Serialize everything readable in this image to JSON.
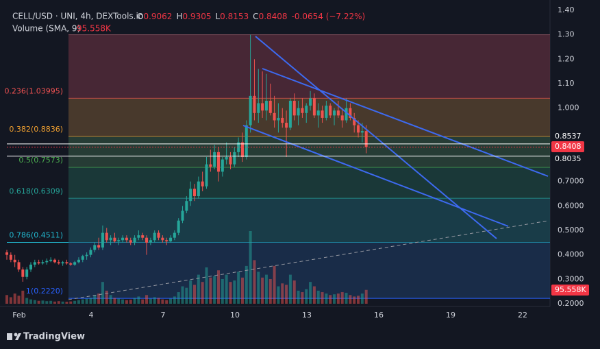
{
  "chart_data": {
    "type": "candlestick",
    "title": "CELL/USD · UNI, 4h, DEXTools.io",
    "ohlc_header": [
      {
        "key": "O",
        "value": 0.9062
      },
      {
        "key": "H",
        "value": 0.9305
      },
      {
        "key": "L",
        "value": 0.8153
      },
      {
        "key": "C",
        "value": 0.8408
      }
    ],
    "change": "-0.0654 (−7.22%)",
    "volume_title": "Volume (SMA, 9)",
    "volume_value": "95.558K",
    "ylim": [
      0.2,
      1.4
    ],
    "yticks": [
      {
        "value": 1.4,
        "label": "1.40"
      },
      {
        "value": 1.3,
        "label": "1.30"
      },
      {
        "value": 1.2,
        "label": "1.20"
      },
      {
        "value": 1.1,
        "label": "1.10"
      },
      {
        "value": 1.0,
        "label": "1.000"
      },
      {
        "value": 0.7,
        "label": "0.7000"
      },
      {
        "value": 0.6,
        "label": "0.6000"
      },
      {
        "value": 0.5,
        "label": "0.5000"
      },
      {
        "value": 0.4,
        "label": "0.4000"
      },
      {
        "value": 0.3,
        "label": "0.3000"
      },
      {
        "value": 0.2,
        "label": "0.2000"
      }
    ],
    "xticks": [
      {
        "value": 1,
        "label": "Feb"
      },
      4,
      7,
      10,
      13,
      16,
      19,
      22
    ],
    "top_level": 1.3,
    "fib_levels": [
      {
        "label": "0.236(1.03995)",
        "price": 1.03995,
        "color": "#f05252"
      },
      {
        "label": "0.382(0.8836)",
        "price": 0.8836,
        "color": "#f0a030"
      },
      {
        "label": "0.5(0.7573)",
        "price": 0.7573,
        "color": "#4caf50"
      },
      {
        "label": "0.618(0.6309)",
        "price": 0.6309,
        "color": "#26a69a"
      },
      {
        "label": "0.786(0.4511)",
        "price": 0.4511,
        "color": "#22b8cf"
      },
      {
        "label": "1(0.2220)",
        "price": 0.222,
        "color": "#2962ff"
      }
    ],
    "price_labels": [
      {
        "value": 0.8537,
        "color": "#ffffff"
      },
      {
        "value": 0.8408,
        "color": "#f23645"
      },
      {
        "value": 0.8035,
        "color": "#ffffff"
      }
    ],
    "up_color": "#26a69a",
    "down_color": "#ef5350",
    "open": [
      0.41,
      0.4,
      0.38,
      0.37,
      0.34,
      0.31,
      0.34,
      0.36,
      0.37,
      0.365,
      0.37,
      0.375,
      0.38,
      0.37,
      0.365,
      0.37,
      0.365,
      0.36,
      0.37,
      0.38,
      0.395,
      0.4,
      0.42,
      0.44,
      0.43,
      0.49,
      0.46,
      0.47,
      0.455,
      0.46,
      0.47,
      0.46,
      0.45,
      0.47,
      0.48,
      0.47,
      0.45,
      0.46,
      0.49,
      0.47,
      0.46,
      0.455,
      0.47,
      0.49,
      0.54,
      0.58,
      0.62,
      0.67,
      0.64,
      0.7,
      0.68,
      0.77,
      0.76,
      0.82,
      0.74,
      0.79,
      0.8,
      0.77,
      0.82,
      0.86,
      0.8,
      0.93,
      1.05,
      0.98,
      1.02,
      0.99,
      1.03,
      0.98,
      0.95,
      0.96,
      0.94,
      0.92,
      1.03,
      0.97,
      1.0,
      0.98,
      1.01,
      1.04,
      0.97,
      0.99,
      0.96,
      1.01,
      0.97,
      0.99,
      0.97,
      0.95,
      1.0,
      0.96,
      0.93,
      0.9,
      0.9062
    ],
    "high": [
      0.42,
      0.41,
      0.4,
      0.38,
      0.35,
      0.35,
      0.37,
      0.38,
      0.38,
      0.38,
      0.385,
      0.39,
      0.385,
      0.38,
      0.375,
      0.38,
      0.37,
      0.375,
      0.39,
      0.4,
      0.41,
      0.43,
      0.45,
      0.47,
      0.52,
      0.51,
      0.48,
      0.49,
      0.47,
      0.48,
      0.48,
      0.47,
      0.48,
      0.5,
      0.49,
      0.48,
      0.47,
      0.5,
      0.5,
      0.48,
      0.47,
      0.48,
      0.5,
      0.55,
      0.6,
      0.64,
      0.7,
      0.69,
      0.72,
      0.74,
      0.8,
      0.83,
      0.85,
      0.84,
      0.8,
      0.86,
      0.82,
      0.84,
      0.88,
      0.9,
      0.95,
      1.3,
      1.2,
      1.16,
      1.15,
      1.14,
      1.1,
      1.05,
      1.02,
      1.0,
      0.99,
      1.04,
      1.06,
      1.03,
      1.04,
      1.02,
      1.07,
      1.06,
      1.02,
      1.01,
      1.03,
      1.02,
      1.0,
      1.03,
      1.0,
      1.04,
      1.02,
      0.98,
      0.95,
      0.94,
      0.9305
    ],
    "low": [
      0.38,
      0.37,
      0.35,
      0.33,
      0.29,
      0.3,
      0.33,
      0.35,
      0.36,
      0.36,
      0.36,
      0.37,
      0.365,
      0.36,
      0.355,
      0.36,
      0.355,
      0.355,
      0.365,
      0.37,
      0.38,
      0.39,
      0.41,
      0.42,
      0.42,
      0.45,
      0.44,
      0.45,
      0.44,
      0.45,
      0.45,
      0.44,
      0.44,
      0.46,
      0.46,
      0.4,
      0.44,
      0.45,
      0.46,
      0.45,
      0.44,
      0.45,
      0.46,
      0.48,
      0.53,
      0.57,
      0.6,
      0.62,
      0.63,
      0.66,
      0.67,
      0.74,
      0.75,
      0.7,
      0.72,
      0.77,
      0.75,
      0.76,
      0.8,
      0.78,
      0.79,
      0.9,
      0.95,
      0.94,
      0.96,
      0.95,
      0.97,
      0.92,
      0.9,
      0.92,
      0.8,
      0.91,
      0.95,
      0.93,
      0.96,
      0.94,
      0.99,
      0.96,
      0.92,
      0.94,
      0.95,
      0.96,
      0.93,
      0.96,
      0.92,
      0.94,
      0.95,
      0.9,
      0.88,
      0.86,
      0.8153
    ],
    "close": [
      0.4,
      0.38,
      0.37,
      0.34,
      0.31,
      0.34,
      0.36,
      0.37,
      0.365,
      0.37,
      0.375,
      0.38,
      0.37,
      0.365,
      0.37,
      0.365,
      0.36,
      0.37,
      0.38,
      0.395,
      0.4,
      0.42,
      0.44,
      0.43,
      0.49,
      0.46,
      0.47,
      0.455,
      0.46,
      0.47,
      0.46,
      0.45,
      0.47,
      0.48,
      0.47,
      0.45,
      0.46,
      0.49,
      0.47,
      0.46,
      0.455,
      0.47,
      0.49,
      0.54,
      0.58,
      0.62,
      0.67,
      0.64,
      0.7,
      0.68,
      0.77,
      0.76,
      0.82,
      0.74,
      0.79,
      0.8,
      0.77,
      0.82,
      0.86,
      0.8,
      0.93,
      1.05,
      0.98,
      1.02,
      0.99,
      1.03,
      0.98,
      0.95,
      0.96,
      0.94,
      0.92,
      1.03,
      0.97,
      1.0,
      0.98,
      1.01,
      1.04,
      0.97,
      0.99,
      0.96,
      1.01,
      0.97,
      0.99,
      0.97,
      0.95,
      1.0,
      0.96,
      0.93,
      0.9,
      0.9062,
      0.8408
    ],
    "volume": [
      60,
      45,
      70,
      55,
      90,
      40,
      30,
      25,
      20,
      22,
      18,
      20,
      15,
      18,
      15,
      14,
      16,
      20,
      25,
      30,
      35,
      40,
      60,
      70,
      150,
      90,
      60,
      40,
      35,
      30,
      25,
      28,
      40,
      50,
      30,
      60,
      35,
      45,
      40,
      30,
      25,
      35,
      50,
      80,
      120,
      110,
      160,
      130,
      200,
      150,
      250,
      180,
      190,
      230,
      170,
      200,
      150,
      160,
      220,
      180,
      260,
      500,
      300,
      220,
      180,
      200,
      170,
      260,
      120,
      140,
      130,
      200,
      160,
      90,
      80,
      100,
      150,
      120,
      90,
      80,
      70,
      60,
      65,
      70,
      80,
      75,
      60,
      50,
      55,
      70,
      95.558
    ]
  }
}
